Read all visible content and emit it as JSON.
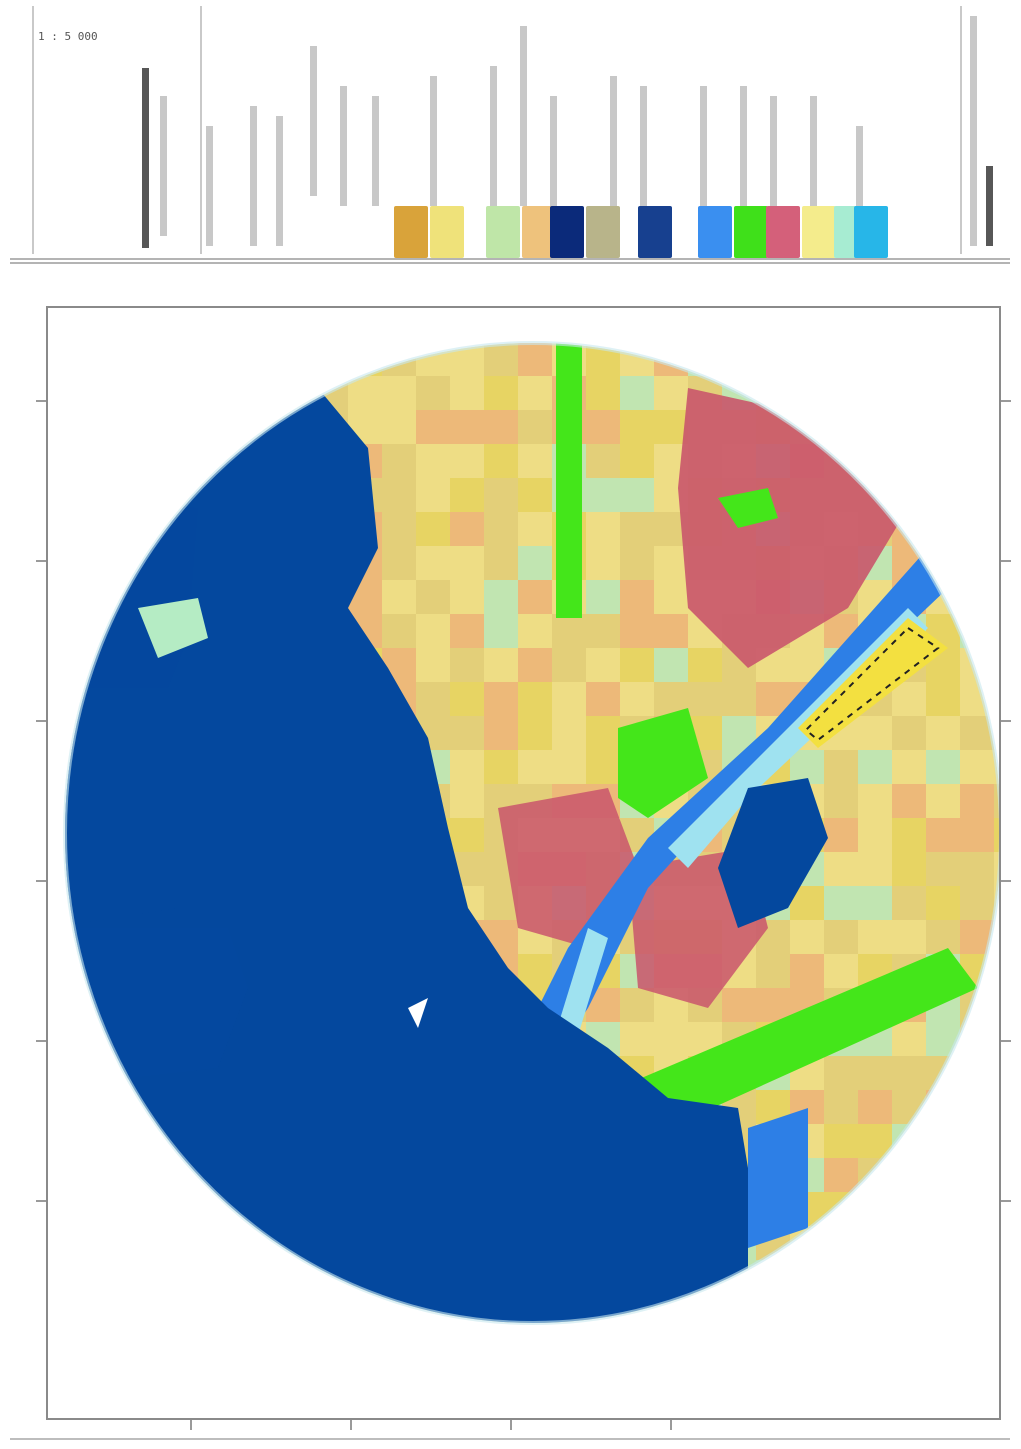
{
  "legend": {
    "code_label": "1 : 5 000",
    "swatches": [
      {
        "name": "urban-ochre",
        "color": "#d9a33a"
      },
      {
        "name": "pale-yellow",
        "color": "#efe27a"
      },
      {
        "name": "pale-green",
        "color": "#bfe6a8"
      },
      {
        "name": "pale-orange",
        "color": "#eec27c"
      },
      {
        "name": "navy",
        "color": "#0b2a7a"
      },
      {
        "name": "olive-grey",
        "color": "#b8b48a"
      },
      {
        "name": "deep-blue",
        "color": "#17408f"
      },
      {
        "name": "sky-blue",
        "color": "#3a8ff0"
      },
      {
        "name": "bright-green",
        "color": "#3fe01a"
      },
      {
        "name": "rose",
        "color": "#d4607a"
      },
      {
        "name": "light-yellow",
        "color": "#f4ec8c"
      },
      {
        "name": "mint",
        "color": "#a7ecd2"
      },
      {
        "name": "cyan",
        "color": "#27b6e8"
      }
    ],
    "scale_labels": [
      "",
      "",
      "",
      "",
      ""
    ]
  },
  "map": {
    "colors": {
      "water": "#04489e",
      "shallow": "#2d7fe6",
      "shore": "#9fe2f0",
      "urban": "#e3cf7a",
      "urban_dense": "#e8d55c",
      "industrial": "#c9556c",
      "park": "#44e61a",
      "sand": "#f1e28a",
      "peach": "#f0b27a",
      "mint": "#b5ecc4"
    }
  }
}
